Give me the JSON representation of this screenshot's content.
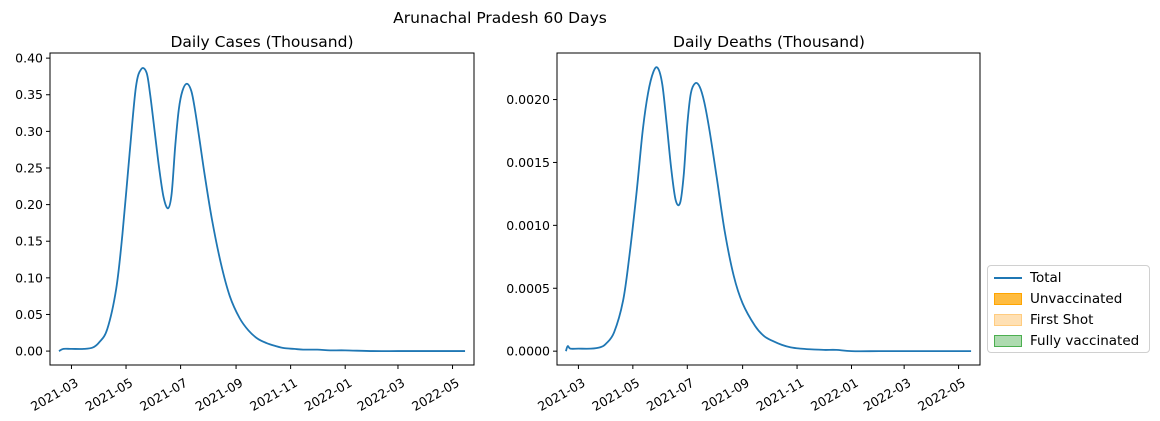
{
  "figure": {
    "suptitle": "Arunachal Pradesh 60 Days"
  },
  "colors": {
    "total": "#1f77b4",
    "unvaccinated": "#ffa500",
    "first_shot": "#ffcc80",
    "fully_vaccinated": "#4caf50"
  },
  "legend": {
    "placement": "right",
    "items": [
      {
        "label": "Total",
        "kind": "line",
        "color": "#1f77b4"
      },
      {
        "label": "Unvaccinated",
        "kind": "patch",
        "color": "#ffa500"
      },
      {
        "label": "First Shot",
        "kind": "patch",
        "color": "#ffcc80"
      },
      {
        "label": "Fully vaccinated",
        "kind": "patch",
        "color": "#4caf50"
      }
    ]
  },
  "chart_data": [
    {
      "type": "line",
      "title": "Daily Cases (Thousand)",
      "xlabel": "",
      "ylabel": "",
      "x_tick_labels": [
        "2021-03",
        "2021-05",
        "2021-07",
        "2021-09",
        "2021-11",
        "2022-01",
        "2022-03",
        "2022-05"
      ],
      "y_tick_labels": [
        "0.00",
        "0.05",
        "0.10",
        "0.15",
        "0.20",
        "0.25",
        "0.30",
        "0.35",
        "0.40"
      ],
      "xlim": [
        "2021-02-05",
        "2022-05-25"
      ],
      "ylim": [
        -0.019,
        0.407
      ],
      "grid": false,
      "series": [
        {
          "name": "Total",
          "x": [
            "2021-02-15",
            "2021-02-20",
            "2021-03-01",
            "2021-03-15",
            "2021-03-25",
            "2021-04-01",
            "2021-04-10",
            "2021-04-20",
            "2021-04-27",
            "2021-05-05",
            "2021-05-12",
            "2021-05-18",
            "2021-05-24",
            "2021-05-28",
            "2021-06-02",
            "2021-06-07",
            "2021-06-12",
            "2021-06-17",
            "2021-06-21",
            "2021-06-25",
            "2021-06-29",
            "2021-07-03",
            "2021-07-08",
            "2021-07-13",
            "2021-07-17",
            "2021-07-22",
            "2021-07-28",
            "2021-08-05",
            "2021-08-15",
            "2021-08-25",
            "2021-09-05",
            "2021-09-15",
            "2021-09-25",
            "2021-10-05",
            "2021-10-15",
            "2021-10-25",
            "2021-11-05",
            "2021-11-15",
            "2021-12-01",
            "2021-12-15",
            "2022-01-01",
            "2022-02-01",
            "2022-03-01",
            "2022-04-01",
            "2022-05-01",
            "2022-05-15"
          ],
          "y": [
            0.0,
            0.003,
            0.003,
            0.003,
            0.005,
            0.012,
            0.03,
            0.085,
            0.16,
            0.27,
            0.36,
            0.385,
            0.38,
            0.35,
            0.3,
            0.25,
            0.21,
            0.195,
            0.215,
            0.28,
            0.33,
            0.355,
            0.365,
            0.355,
            0.33,
            0.29,
            0.24,
            0.18,
            0.12,
            0.075,
            0.045,
            0.028,
            0.017,
            0.011,
            0.007,
            0.004,
            0.003,
            0.002,
            0.002,
            0.001,
            0.001,
            0.0,
            0.0,
            0.0,
            0.0,
            0.0
          ]
        }
      ]
    },
    {
      "type": "line",
      "title": "Daily Deaths (Thousand)",
      "xlabel": "",
      "ylabel": "",
      "x_tick_labels": [
        "2021-03",
        "2021-05",
        "2021-07",
        "2021-09",
        "2021-11",
        "2022-01",
        "2022-03",
        "2022-05"
      ],
      "y_tick_labels": [
        "0.0000",
        "0.0005",
        "0.0010",
        "0.0015",
        "0.0020"
      ],
      "xlim": [
        "2021-02-05",
        "2022-05-25"
      ],
      "ylim": [
        -0.00011,
        0.00237
      ],
      "grid": false,
      "series": [
        {
          "name": "Total",
          "x": [
            "2021-02-15",
            "2021-02-17",
            "2021-02-20",
            "2021-03-01",
            "2021-03-15",
            "2021-03-25",
            "2021-04-01",
            "2021-04-10",
            "2021-04-20",
            "2021-04-27",
            "2021-05-05",
            "2021-05-12",
            "2021-05-18",
            "2021-05-24",
            "2021-05-29",
            "2021-06-03",
            "2021-06-08",
            "2021-06-13",
            "2021-06-18",
            "2021-06-23",
            "2021-06-27",
            "2021-07-01",
            "2021-07-05",
            "2021-07-10",
            "2021-07-15",
            "2021-07-20",
            "2021-07-26",
            "2021-08-03",
            "2021-08-12",
            "2021-08-22",
            "2021-09-01",
            "2021-09-15",
            "2021-09-25",
            "2021-10-05",
            "2021-10-15",
            "2021-10-25",
            "2021-11-05",
            "2021-11-15",
            "2021-12-01",
            "2021-12-15",
            "2022-01-01",
            "2022-02-01",
            "2022-03-01",
            "2022-04-01",
            "2022-05-01",
            "2022-05-15"
          ],
          "y": [
            0.0,
            4e-05,
            2e-05,
            2e-05,
            2e-05,
            3e-05,
            6e-05,
            0.00015,
            0.0004,
            0.00075,
            0.00125,
            0.00175,
            0.00205,
            0.00222,
            0.00225,
            0.00212,
            0.0018,
            0.00145,
            0.0012,
            0.00118,
            0.0014,
            0.0018,
            0.00205,
            0.00213,
            0.0021,
            0.00198,
            0.00175,
            0.00138,
            0.00095,
            0.0006,
            0.00038,
            0.0002,
            0.00012,
            8e-05,
            5e-05,
            3e-05,
            2e-05,
            1.5e-05,
            1e-05,
            1e-05,
            0.0,
            0.0,
            0.0,
            0.0,
            0.0,
            0.0
          ]
        }
      ]
    }
  ]
}
